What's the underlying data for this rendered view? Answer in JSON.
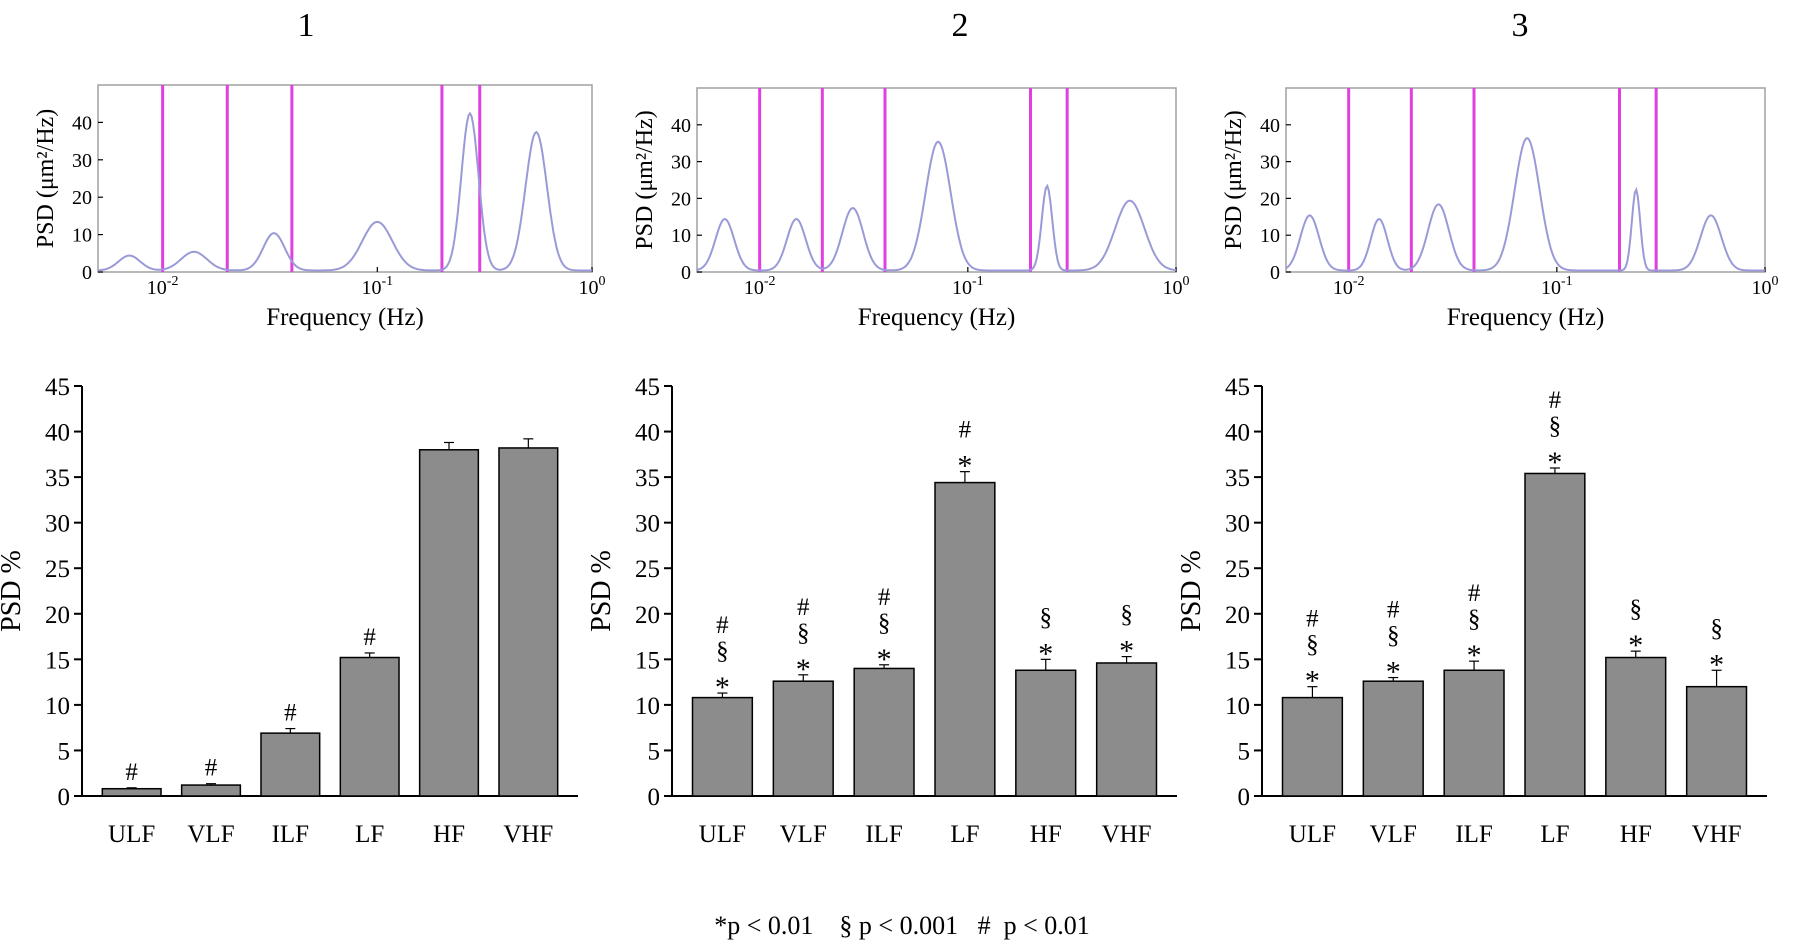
{
  "colors": {
    "bar_fill": "#8c8c8c",
    "band_line": "#e040e0",
    "spectrum_line": "#9a9ad8",
    "spectrum_accent": "#3aa890",
    "frame": "#a0a0a0"
  },
  "footnote": "*p < 0.01    § p < 0.001   #  p < 0.01",
  "chart_data": [
    {
      "type": "line",
      "panel": "1",
      "title": "1",
      "xlabel": "Frequency (Hz)",
      "ylabel": "PSD (μm²/Hz)",
      "xscale": "log",
      "xlim": [
        0.005,
        1.0
      ],
      "ylim": [
        0,
        50
      ],
      "x_ticks": [
        {
          "base": "10",
          "exp": "-2"
        },
        {
          "base": "10",
          "exp": "-1"
        },
        {
          "base": "10",
          "exp": "0"
        }
      ],
      "y_ticks": [
        "0",
        "10",
        "20",
        "30",
        "40"
      ],
      "band_edges": [
        0.01,
        0.02,
        0.04,
        0.2,
        0.3
      ],
      "peaks": [
        {
          "f": 0.007,
          "a": 4,
          "w": 0.05
        },
        {
          "f": 0.014,
          "a": 5,
          "w": 0.06
        },
        {
          "f": 0.033,
          "a": 10,
          "w": 0.05
        },
        {
          "f": 0.1,
          "a": 13,
          "w": 0.07
        },
        {
          "f": 0.27,
          "a": 42,
          "w": 0.04
        },
        {
          "f": 0.55,
          "a": 37,
          "w": 0.05
        }
      ]
    },
    {
      "type": "line",
      "panel": "2",
      "title": "2",
      "xlabel": "Frequency (Hz)",
      "ylabel": "PSD (μm²/Hz)",
      "xscale": "log",
      "xlim": [
        0.005,
        1.0
      ],
      "ylim": [
        0,
        50
      ],
      "x_ticks": [
        {
          "base": "10",
          "exp": "-2"
        },
        {
          "base": "10",
          "exp": "-1"
        },
        {
          "base": "10",
          "exp": "0"
        }
      ],
      "y_ticks": [
        "0",
        "10",
        "20",
        "30",
        "40"
      ],
      "band_edges": [
        0.01,
        0.02,
        0.04,
        0.2,
        0.3
      ],
      "peaks": [
        {
          "f": 0.0068,
          "a": 14,
          "w": 0.045
        },
        {
          "f": 0.015,
          "a": 14,
          "w": 0.045
        },
        {
          "f": 0.028,
          "a": 17,
          "w": 0.05
        },
        {
          "f": 0.072,
          "a": 35,
          "w": 0.06
        },
        {
          "f": 0.24,
          "a": 23,
          "w": 0.025
        },
        {
          "f": 0.6,
          "a": 19,
          "w": 0.07
        }
      ]
    },
    {
      "type": "line",
      "panel": "3",
      "title": "3",
      "xlabel": "Frequency (Hz)",
      "ylabel": "PSD (μm²/Hz)",
      "xscale": "log",
      "xlim": [
        0.005,
        1.0
      ],
      "ylim": [
        0,
        50
      ],
      "x_ticks": [
        {
          "base": "10",
          "exp": "-2"
        },
        {
          "base": "10",
          "exp": "-1"
        },
        {
          "base": "10",
          "exp": "0"
        }
      ],
      "y_ticks": [
        "0",
        "10",
        "20",
        "30",
        "40"
      ],
      "band_edges": [
        0.01,
        0.02,
        0.04,
        0.2,
        0.3
      ],
      "peaks": [
        {
          "f": 0.0065,
          "a": 15,
          "w": 0.045
        },
        {
          "f": 0.014,
          "a": 14,
          "w": 0.04
        },
        {
          "f": 0.027,
          "a": 18,
          "w": 0.05
        },
        {
          "f": 0.072,
          "a": 36,
          "w": 0.06
        },
        {
          "f": 0.24,
          "a": 22,
          "w": 0.02
        },
        {
          "f": 0.55,
          "a": 15,
          "w": 0.05
        }
      ]
    },
    {
      "type": "bar",
      "panel": "1",
      "ylabel": "PSD %",
      "ylim": [
        0,
        45
      ],
      "y_ticks": [
        "0",
        "5",
        "10",
        "15",
        "20",
        "25",
        "30",
        "35",
        "40",
        "45"
      ],
      "categories": [
        "ULF",
        "VLF",
        "ILF",
        "LF",
        "HF",
        "VHF"
      ],
      "values": [
        0.8,
        1.2,
        6.9,
        15.2,
        38.0,
        38.2
      ],
      "errors": [
        0.1,
        0.15,
        0.5,
        0.5,
        0.8,
        1.0
      ],
      "annotations": [
        [
          "#"
        ],
        [
          "#"
        ],
        [
          "#"
        ],
        [
          "#"
        ],
        [],
        []
      ]
    },
    {
      "type": "bar",
      "panel": "2",
      "ylabel": "PSD %",
      "ylim": [
        0,
        45
      ],
      "y_ticks": [
        "0",
        "5",
        "10",
        "15",
        "20",
        "25",
        "30",
        "35",
        "40",
        "45"
      ],
      "categories": [
        "ULF",
        "VLF",
        "ILF",
        "LF",
        "HF",
        "VHF"
      ],
      "values": [
        10.8,
        12.6,
        14.0,
        34.4,
        13.8,
        14.6
      ],
      "errors": [
        0.5,
        0.7,
        0.4,
        1.2,
        1.2,
        0.7
      ],
      "annotations": [
        [
          "#",
          "§",
          "*"
        ],
        [
          "#",
          "§",
          "*"
        ],
        [
          "#",
          "§",
          "*"
        ],
        [
          "#",
          "*"
        ],
        [
          "§",
          "*"
        ],
        [
          "§",
          "*"
        ]
      ]
    },
    {
      "type": "bar",
      "panel": "3",
      "ylabel": "PSD %",
      "ylim": [
        0,
        45
      ],
      "y_ticks": [
        "0",
        "5",
        "10",
        "15",
        "20",
        "25",
        "30",
        "35",
        "40",
        "45"
      ],
      "categories": [
        "ULF",
        "VLF",
        "ILF",
        "LF",
        "HF",
        "VHF"
      ],
      "values": [
        10.8,
        12.6,
        13.8,
        35.4,
        15.2,
        12.0
      ],
      "errors": [
        1.2,
        0.4,
        1.0,
        0.6,
        0.7,
        1.8
      ],
      "annotations": [
        [
          "#",
          "§",
          "*"
        ],
        [
          "#",
          "§",
          "*"
        ],
        [
          "#",
          "§",
          "*"
        ],
        [
          "#",
          "§",
          "*"
        ],
        [
          "§",
          "*"
        ],
        [
          "§",
          "*"
        ]
      ]
    }
  ]
}
